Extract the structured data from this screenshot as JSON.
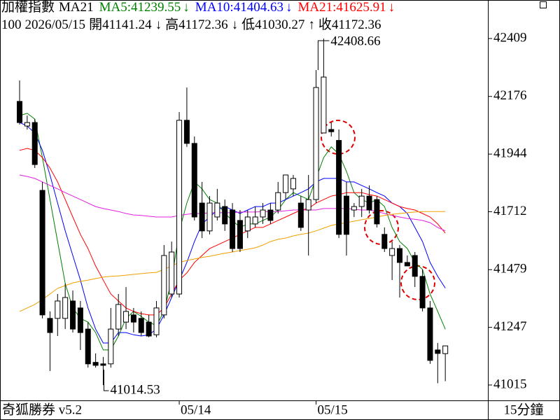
{
  "chart_data": {
    "type": "candlestick",
    "title": "加權指數",
    "indicator": "MA21",
    "info": [
      "100",
      "2026/05/15",
      "開41141.24",
      "↓",
      "高41172.36",
      "↓",
      "低41030.27",
      "↑",
      "收41172.36"
    ],
    "brand": "奇狐勝券 v5.2",
    "period": "15分鐘",
    "annotations": [
      "42408.66",
      "41014.53"
    ],
    "categories": [
      null,
      null,
      null,
      null,
      null,
      null,
      null,
      null,
      null,
      null,
      null,
      null,
      null,
      null,
      null,
      null,
      null,
      null,
      null,
      null,
      null,
      "05/14",
      null,
      null,
      null,
      null,
      null,
      null,
      null,
      null,
      null,
      null,
      null,
      null,
      null,
      null,
      null,
      null,
      null,
      "05/15",
      null,
      null,
      null,
      null,
      null,
      null,
      null,
      null,
      null,
      null,
      null,
      null,
      null,
      null,
      null,
      null,
      null
    ],
    "open": [
      42156,
      42057,
      42071,
      41798,
      41283,
      41283,
      41283,
      41353,
      41325,
      41240,
      41106,
      41100,
      41100,
      41240,
      41268,
      41297,
      41283,
      41268,
      41217,
      41297,
      41381,
      41381,
      42080,
      41987,
      41747,
      41635,
      41691,
      41733,
      41719,
      41677,
      41635,
      41663,
      41691,
      41719,
      41719,
      41789,
      41804,
      41747,
      41719,
      41761,
      42029,
      42043,
      41999,
      41775,
      41719,
      41733,
      41775,
      41761,
      41621,
      41536,
      41564,
      41508,
      41536,
      41452,
      41325,
      41156,
      41141.24
    ],
    "high": [
      42240,
      42099,
      42085,
      41832,
      41311,
      41381,
      41423,
      41395,
      41353,
      41268,
      41142,
      41128,
      41325,
      41381,
      41409,
      41325,
      41311,
      41297,
      41353,
      41578,
      41592,
      42113,
      42212,
      42015,
      41832,
      41775,
      41804,
      41761,
      41747,
      41719,
      41719,
      41733,
      41747,
      41747,
      41832,
      41860,
      41860,
      41775,
      41860,
      42282,
      42408.66,
      42071,
      42043,
      41832,
      41747,
      41804,
      41818,
      41775,
      41649,
      41592,
      41578,
      41536,
      41550,
      41480,
      41353,
      41184,
      41172.36
    ],
    "low": [
      42063,
      42043,
      41888,
      41283,
      41071,
      41212,
      41240,
      41226,
      41156,
      41085,
      41085,
      41014.53,
      41085,
      41212,
      41240,
      41226,
      41212,
      41207,
      41207,
      41283,
      41367,
      41367,
      41973,
      41677,
      41606,
      41621,
      41677,
      41635,
      41550,
      41550,
      41606,
      41649,
      41663,
      41663,
      41705,
      41761,
      41775,
      41635,
      41536,
      41747,
      42029,
      42015,
      41606,
      41536,
      41691,
      41691,
      41705,
      41649,
      41550,
      41437,
      41367,
      41494,
      41409,
      41311,
      41100,
      41022,
      41030.27
    ],
    "close": [
      42071,
      42071,
      41902,
      41297,
      41226,
      41353,
      41367,
      41240,
      41226,
      41100,
      41094,
      41094,
      41240,
      41339,
      41311,
      41268,
      41226,
      41212,
      41325,
      41536,
      41550,
      42080,
      41987,
      41691,
      41635,
      41747,
      41747,
      41663,
      41564,
      41564,
      41691,
      41691,
      41719,
      41677,
      41789,
      41860,
      41846,
      41649,
      41761,
      42212,
      42254,
      42034,
      41621,
      41621,
      41733,
      41775,
      41719,
      41663,
      41564,
      41564,
      41508,
      41494,
      41452,
      41325,
      41114,
      41142,
      41172.36
    ],
    "series": [
      {
        "name": "MA5:41239.55",
        "arrow": "↓",
        "color": "#008000",
        "values": [
          42099,
          42108,
          42085,
          41930,
          41761,
          41592,
          41423,
          41325,
          41283,
          41268,
          41226,
          41156,
          41156,
          41212,
          41283,
          41311,
          41291,
          41268,
          41254,
          41311,
          41437,
          41635,
          41747,
          41832,
          41804,
          41761,
          41747,
          41705,
          41677,
          41649,
          41663,
          41663,
          41677,
          41691,
          41719,
          41761,
          41789,
          41775,
          41761,
          41846,
          41930,
          41973,
          41944,
          41874,
          41789,
          41761,
          41747,
          41761,
          41733,
          41649,
          41592,
          41564,
          41508,
          41480,
          41381,
          41311,
          41239.55
        ]
      },
      {
        "name": "MA10:41404.63",
        "arrow": "↓",
        "color": "#0000ff",
        "values": [
          42071,
          42057,
          42029,
          41959,
          41860,
          41747,
          41635,
          41536,
          41437,
          41325,
          41240,
          41184,
          41184,
          41226,
          41226,
          41217,
          41212,
          41217,
          41240,
          41297,
          41367,
          41437,
          41508,
          41592,
          41663,
          41691,
          41719,
          41733,
          41719,
          41705,
          41719,
          41733,
          41733,
          41747,
          41747,
          41761,
          41775,
          41789,
          41804,
          41832,
          41846,
          41846,
          41846,
          41832,
          41832,
          41818,
          41804,
          41789,
          41775,
          41747,
          41733,
          41705,
          41649,
          41592,
          41508,
          41452,
          41404.63
        ]
      },
      {
        "name": "MA21:41625.91",
        "arrow": "↓",
        "color": "#ff0000",
        "values": [
          41959,
          41967,
          41959,
          41930,
          41888,
          41832,
          41761,
          41691,
          41621,
          41564,
          41494,
          41437,
          41381,
          41353,
          41325,
          41311,
          41302,
          41297,
          41297,
          41325,
          41381,
          41437,
          41466,
          41508,
          41536,
          41564,
          41578,
          41592,
          41606,
          41621,
          41635,
          41649,
          41649,
          41663,
          41677,
          41691,
          41705,
          41719,
          41725,
          41747,
          41761,
          41775,
          41781,
          41789,
          41789,
          41789,
          41781,
          41775,
          41761,
          41747,
          41733,
          41725,
          41719,
          41705,
          41691,
          41663,
          41625.91
        ]
      },
      {
        "color": "#e020e0",
        "values": [
          41860,
          41854,
          41846,
          41832,
          41818,
          41804,
          41789,
          41775,
          41761,
          41747,
          41733,
          41725,
          41719,
          41713,
          41705,
          41699,
          41697,
          41694,
          41691,
          41691,
          41691,
          41697,
          41702,
          41705,
          41705,
          41708,
          41708,
          41708,
          41708,
          41711,
          41711,
          41711,
          41713,
          41713,
          41713,
          41716,
          41719,
          41719,
          41719,
          41719,
          41725,
          41725,
          41725,
          41725,
          41722,
          41719,
          41719,
          41713,
          41705,
          41697,
          41691,
          41685,
          41682,
          41677,
          41668,
          41649,
          41635
        ]
      },
      {
        "color": "#f0a000",
        "values": [
          41311,
          41325,
          41339,
          41359,
          41381,
          41404,
          41415,
          41426,
          41432,
          41437,
          41443,
          41449,
          41452,
          41454,
          41457,
          41460,
          41463,
          41466,
          41468,
          41480,
          41494,
          41508,
          41516,
          41522,
          41528,
          41533,
          41539,
          41545,
          41550,
          41556,
          41561,
          41567,
          41578,
          41592,
          41601,
          41606,
          41615,
          41621,
          41626,
          41635,
          41646,
          41657,
          41663,
          41668,
          41674,
          41680,
          41685,
          41691,
          41697,
          41702,
          41705,
          41708,
          41711,
          41713,
          41713,
          41713,
          41713
        ]
      }
    ],
    "ylim": [
      40953,
      42564
    ],
    "yticks": [
      42409,
      42176,
      41944,
      41712,
      41479,
      41247,
      41015
    ]
  }
}
